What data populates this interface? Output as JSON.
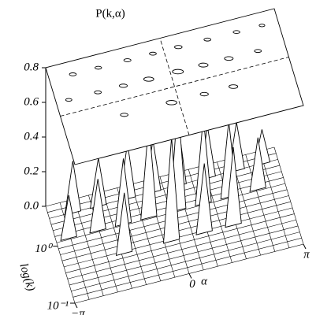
{
  "chart_data": {
    "type": "surface3d",
    "title": "P(k,α)",
    "xlabel": "α",
    "ylabel": "log(k)",
    "xlim": [
      -3.14159,
      3.14159
    ],
    "xticks": [
      {
        "value": -3.14159,
        "label": "−π"
      },
      0,
      {
        "value": 3.14159,
        "label": "π"
      }
    ],
    "ylim": [
      0.1,
      5
    ],
    "ylog": true,
    "yticks": [
      {
        "value": 0.1,
        "label": "10⁻¹"
      },
      {
        "value": 1,
        "label": "10⁰"
      }
    ],
    "zlim": [
      0,
      0.8
    ],
    "zticks": [
      {
        "value": 0,
        "label": "0.0"
      },
      {
        "value": 0.2,
        "label": "0.2"
      },
      {
        "value": 0.4,
        "label": "0.4"
      },
      {
        "value": 0.6,
        "label": "0.6"
      },
      {
        "value": 0.8,
        "label": "0.8"
      }
    ],
    "x": [
      -2.5,
      -1.8,
      -1.0,
      -0.3,
      0.4,
      1.2,
      2.0,
      2.7,
      -2.8,
      -2.0,
      -1.3,
      -0.6,
      0.2,
      0.9,
      1.6,
      2.4,
      -1.5,
      -0.2,
      0.7,
      1.5
    ],
    "y": [
      3,
      3,
      3,
      3,
      3,
      3,
      3,
      3,
      1.2,
      1.2,
      1.2,
      1.2,
      1.2,
      1.2,
      1.2,
      1.2,
      0.4,
      0.4,
      0.4,
      0.4
    ],
    "z": [
      0.3,
      0.28,
      0.32,
      0.3,
      0.35,
      0.3,
      0.28,
      0.2,
      0.25,
      0.3,
      0.38,
      0.55,
      0.62,
      0.5,
      0.44,
      0.3,
      0.35,
      0.6,
      0.4,
      0.45
    ],
    "color": "#000000"
  }
}
